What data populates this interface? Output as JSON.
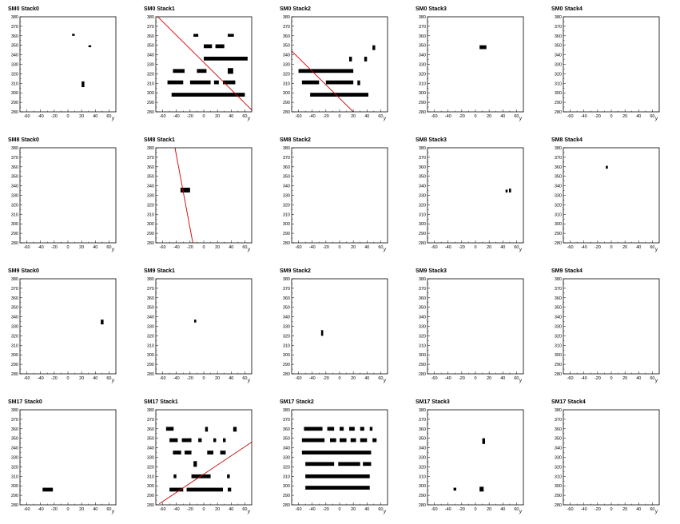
{
  "chart_data": {
    "type": "scatter",
    "xlim": [
      -70,
      70
    ],
    "ylim": [
      280,
      380
    ],
    "xticks": [
      -60,
      -40,
      -20,
      0,
      20,
      40,
      60
    ],
    "yticks": [
      280,
      290,
      300,
      310,
      320,
      330,
      340,
      350,
      360,
      370,
      380
    ],
    "xlabel": "y",
    "ylabel": "",
    "grid": false,
    "colors": {
      "hits": "#000000",
      "fit_line": "#cc0000",
      "frame": "#000000"
    },
    "panels": [
      {
        "title": "SM0 Stack0",
        "clusters": [
          {
            "x": [
              6,
              10
            ],
            "y": [
              360,
              362
            ]
          },
          {
            "x": [
              30,
              34
            ],
            "y": [
              348,
              350
            ]
          },
          {
            "x": [
              20,
              24
            ],
            "y": [
              306,
              312
            ]
          }
        ],
        "line": null
      },
      {
        "title": "SM0 Stack1",
        "clusters": [
          {
            "x": [
              -15,
              -8
            ],
            "y": [
              359,
              362
            ]
          },
          {
            "x": [
              35,
              44
            ],
            "y": [
              359,
              362
            ]
          },
          {
            "x": [
              0,
              12
            ],
            "y": [
              347,
              351
            ]
          },
          {
            "x": [
              17,
              30
            ],
            "y": [
              347,
              351
            ]
          },
          {
            "x": [
              0,
              64
            ],
            "y": [
              334,
              338
            ]
          },
          {
            "x": [
              -45,
              -28
            ],
            "y": [
              321,
              325
            ]
          },
          {
            "x": [
              -10,
              4
            ],
            "y": [
              321,
              325
            ]
          },
          {
            "x": [
              35,
              43
            ],
            "y": [
              320,
              326
            ]
          },
          {
            "x": [
              -53,
              -30
            ],
            "y": [
              309,
              313
            ]
          },
          {
            "x": [
              -20,
              10
            ],
            "y": [
              309,
              313
            ]
          },
          {
            "x": [
              15,
              22
            ],
            "y": [
              309,
              313
            ]
          },
          {
            "x": [
              28,
              46
            ],
            "y": [
              309,
              313
            ]
          },
          {
            "x": [
              -47,
              60
            ],
            "y": [
              296,
              300
            ]
          }
        ],
        "line": {
          "x": [
            -70,
            70
          ],
          "y": [
            382,
            282
          ]
        }
      },
      {
        "title": "SM0 Stack2",
        "clusters": [
          {
            "x": [
              48,
              52
            ],
            "y": [
              345,
              350
            ]
          },
          {
            "x": [
              14,
              18
            ],
            "y": [
              333,
              338
            ]
          },
          {
            "x": [
              36,
              40
            ],
            "y": [
              333,
              338
            ]
          },
          {
            "x": [
              -60,
              20
            ],
            "y": [
              321,
              325
            ]
          },
          {
            "x": [
              -55,
              -30
            ],
            "y": [
              309,
              313
            ]
          },
          {
            "x": [
              -20,
              20
            ],
            "y": [
              309,
              313
            ]
          },
          {
            "x": [
              26,
              30
            ],
            "y": [
              308,
              313
            ]
          },
          {
            "x": [
              -43,
              42
            ],
            "y": [
              296,
              300
            ]
          }
        ],
        "line": {
          "x": [
            -70,
            20
          ],
          "y": [
            344,
            280
          ]
        }
      },
      {
        "title": "SM0 Stack3",
        "clusters": [
          {
            "x": [
              6,
              16
            ],
            "y": [
              346,
              350
            ]
          }
        ],
        "line": null
      },
      {
        "title": "SM0 Stack4",
        "clusters": [],
        "line": null
      },
      {
        "title": "SM8 Stack0",
        "clusters": [],
        "line": null
      },
      {
        "title": "SM8 Stack1",
        "clusters": [
          {
            "x": [
              -34,
              -20
            ],
            "y": [
              333,
              338
            ]
          }
        ],
        "line": {
          "x": [
            -42,
            -16
          ],
          "y": [
            380,
            280
          ]
        }
      },
      {
        "title": "SM8 Stack2",
        "clusters": [],
        "line": null
      },
      {
        "title": "SM8 Stack3",
        "clusters": [
          {
            "x": [
              44,
              47
            ],
            "y": [
              333,
              336
            ]
          },
          {
            "x": [
              49,
              52
            ],
            "y": [
              333,
              337
            ]
          }
        ],
        "line": null
      },
      {
        "title": "SM8 Stack4",
        "clusters": [
          {
            "x": [
              -8,
              -5
            ],
            "y": [
              358,
              361
            ]
          }
        ],
        "line": null
      },
      {
        "title": "SM9 Stack0",
        "clusters": [
          {
            "x": [
              48,
              52
            ],
            "y": [
              332,
              337
            ]
          }
        ],
        "line": null
      },
      {
        "title": "SM9 Stack1",
        "clusters": [
          {
            "x": [
              -14,
              -11
            ],
            "y": [
              334,
              337
            ]
          }
        ],
        "line": null
      },
      {
        "title": "SM9 Stack2",
        "clusters": [
          {
            "x": [
              -27,
              -24
            ],
            "y": [
              320,
              326
            ]
          }
        ],
        "line": null
      },
      {
        "title": "SM9 Stack3",
        "clusters": [],
        "line": null
      },
      {
        "title": "SM9 Stack4",
        "clusters": [],
        "line": null
      },
      {
        "title": "SM17 Stack0",
        "clusters": [
          {
            "x": [
              -37,
              -22
            ],
            "y": [
              294,
              298
            ]
          }
        ],
        "line": null
      },
      {
        "title": "SM17 Stack1",
        "clusters": [
          {
            "x": [
              -55,
              -44
            ],
            "y": [
              358,
              362
            ]
          },
          {
            "x": [
              2,
              6
            ],
            "y": [
              357,
              362
            ]
          },
          {
            "x": [
              43,
              48
            ],
            "y": [
              357,
              362
            ]
          },
          {
            "x": [
              -50,
              -38
            ],
            "y": [
              346,
              350
            ]
          },
          {
            "x": [
              -32,
              -18
            ],
            "y": [
              346,
              350
            ]
          },
          {
            "x": [
              -8,
              -3
            ],
            "y": [
              346,
              350
            ]
          },
          {
            "x": [
              14,
              18
            ],
            "y": [
              346,
              350
            ]
          },
          {
            "x": [
              28,
              32
            ],
            "y": [
              346,
              350
            ]
          },
          {
            "x": [
              -45,
              -33
            ],
            "y": [
              333,
              337
            ]
          },
          {
            "x": [
              -28,
              -18
            ],
            "y": [
              333,
              337
            ]
          },
          {
            "x": [
              5,
              14
            ],
            "y": [
              333,
              337
            ]
          },
          {
            "x": [
              24,
              32
            ],
            "y": [
              333,
              337
            ]
          },
          {
            "x": [
              -15,
              -10
            ],
            "y": [
              320,
              326
            ]
          },
          {
            "x": [
              -44,
              -40
            ],
            "y": [
              308,
              312
            ]
          },
          {
            "x": [
              -18,
              10
            ],
            "y": [
              308,
              312
            ]
          },
          {
            "x": [
              34,
              38
            ],
            "y": [
              308,
              312
            ]
          },
          {
            "x": [
              -50,
              -30
            ],
            "y": [
              294,
              298
            ]
          },
          {
            "x": [
              -25,
              28
            ],
            "y": [
              294,
              298
            ]
          },
          {
            "x": [
              35,
              40
            ],
            "y": [
              294,
              298
            ]
          }
        ],
        "line": {
          "x": [
            -65,
            70
          ],
          "y": [
            281,
            346
          ]
        }
      },
      {
        "title": "SM17 Stack2",
        "clusters": [
          {
            "x": [
              -52,
              -25
            ],
            "y": [
              358,
              362
            ]
          },
          {
            "x": [
              -18,
              -8
            ],
            "y": [
              358,
              362
            ]
          },
          {
            "x": [
              0,
              6
            ],
            "y": [
              358,
              362
            ]
          },
          {
            "x": [
              14,
              22
            ],
            "y": [
              358,
              362
            ]
          },
          {
            "x": [
              30,
              36
            ],
            "y": [
              358,
              362
            ]
          },
          {
            "x": [
              44,
              48
            ],
            "y": [
              358,
              362
            ]
          },
          {
            "x": [
              -55,
              -22
            ],
            "y": [
              346,
              350
            ]
          },
          {
            "x": [
              -14,
              -5
            ],
            "y": [
              346,
              350
            ]
          },
          {
            "x": [
              0,
              10
            ],
            "y": [
              346,
              350
            ]
          },
          {
            "x": [
              16,
              24
            ],
            "y": [
              346,
              350
            ]
          },
          {
            "x": [
              30,
              40
            ],
            "y": [
              346,
              350
            ]
          },
          {
            "x": [
              48,
              54
            ],
            "y": [
              346,
              350
            ]
          },
          {
            "x": [
              -55,
              46
            ],
            "y": [
              333,
              337
            ]
          },
          {
            "x": [
              -50,
              -8
            ],
            "y": [
              321,
              325
            ]
          },
          {
            "x": [
              -2,
              30
            ],
            "y": [
              321,
              325
            ]
          },
          {
            "x": [
              34,
              46
            ],
            "y": [
              321,
              325
            ]
          },
          {
            "x": [
              -50,
              44
            ],
            "y": [
              308,
              312
            ]
          },
          {
            "x": [
              -50,
              44
            ],
            "y": [
              296,
              300
            ]
          }
        ],
        "line": null
      },
      {
        "title": "SM17 Stack3",
        "clusters": [
          {
            "x": [
              10,
              14
            ],
            "y": [
              344,
              350
            ]
          },
          {
            "x": [
              -32,
              -28
            ],
            "y": [
              295,
              298
            ]
          },
          {
            "x": [
              6,
              12
            ],
            "y": [
              294,
              299
            ]
          }
        ],
        "line": null
      },
      {
        "title": "SM17 Stack4",
        "clusters": [],
        "line": null
      }
    ]
  }
}
